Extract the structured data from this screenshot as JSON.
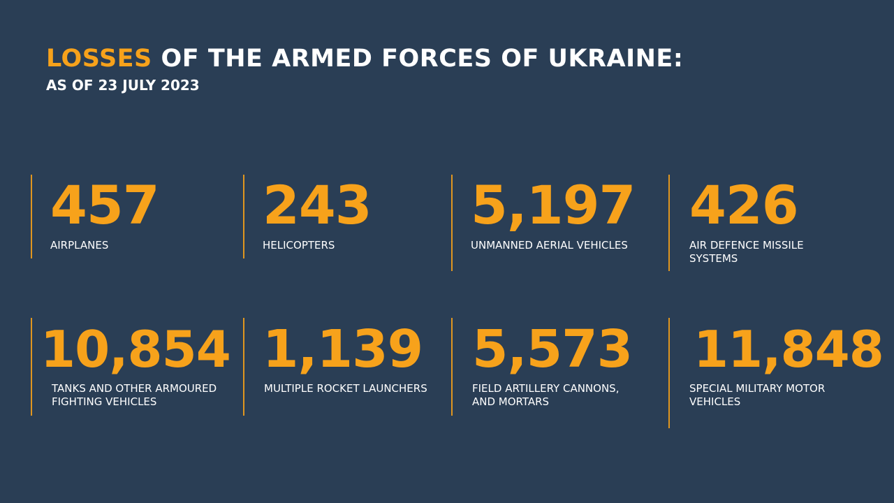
{
  "header": {
    "title_accent": "LOSSES",
    "title_rest": " OF THE ARMED FORCES OF UKRAINE:",
    "subtitle": "AS OF 23 JULY 2023"
  },
  "colors": {
    "background": "#2a3e55",
    "accent": "#f7a21b",
    "text": "#ffffff"
  },
  "stats": [
    {
      "value": "457",
      "label_line1": "AIRPLANES",
      "label_line2": ""
    },
    {
      "value": "243",
      "label_line1": "HELICOPTERS",
      "label_line2": ""
    },
    {
      "value": "5,197",
      "label_line1": "UNMANNED AERIAL VEHICLES",
      "label_line2": ""
    },
    {
      "value": "426",
      "label_line1": "AIR DEFENCE MISSILE",
      "label_line2": "SYSTEMS"
    },
    {
      "value": "10,854",
      "label_line1": "TANKS AND OTHER ARMOURED",
      "label_line2": "FIGHTING VEHICLES"
    },
    {
      "value": "1,139",
      "label_line1": "MULTIPLE ROCKET LAUNCHERS",
      "label_line2": ""
    },
    {
      "value": "5,573",
      "label_line1": "FIELD ARTILLERY CANNONS,",
      "label_line2": "AND MORTARS"
    },
    {
      "value": "11,848",
      "label_line1": "SPECIAL MILITARY MOTOR",
      "label_line2": "VEHICLES"
    }
  ]
}
